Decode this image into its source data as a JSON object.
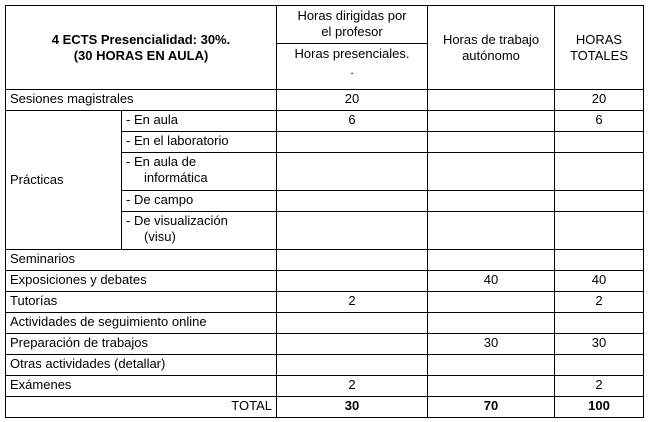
{
  "header": {
    "title_line1": "4 ECTS Presencialidad: 30%.",
    "title_line2": "(30 HORAS EN AULA)",
    "col_profesor_line1": "Horas dirigidas por",
    "col_profesor_line2": "el profesor",
    "col_presenciales_line1": "Horas presenciales.",
    "col_presenciales_line2": ".",
    "col_autonomo_line1": "Horas de trabajo",
    "col_autonomo_line2": "autónomo",
    "col_totales_line1": "HORAS",
    "col_totales_line2": "TOTALES"
  },
  "rows": {
    "sesiones": {
      "label": "Sesiones magistrales",
      "profesor": "20",
      "autonomo": "",
      "total": "20"
    },
    "practicas": {
      "label": "Prácticas",
      "sub": [
        {
          "label": "- En aula",
          "profesor": "6",
          "autonomo": "",
          "total": "6"
        },
        {
          "label": "- En el laboratorio",
          "profesor": "",
          "autonomo": "",
          "total": ""
        },
        {
          "label_line1": "- En aula de",
          "label_line2": "informática",
          "profesor": "",
          "autonomo": "",
          "total": ""
        },
        {
          "label": "- De campo",
          "profesor": "",
          "autonomo": "",
          "total": ""
        },
        {
          "label_line1": "- De visualización",
          "label_line2": "(visu)",
          "profesor": "",
          "autonomo": "",
          "total": ""
        }
      ]
    },
    "seminarios": {
      "label": "Seminarios",
      "profesor": "",
      "autonomo": "",
      "total": ""
    },
    "exposiciones": {
      "label": "Exposiciones y debates",
      "profesor": "",
      "autonomo": "40",
      "total": "40"
    },
    "tutorias": {
      "label": "Tutorías",
      "profesor": "2",
      "autonomo": "",
      "total": "2"
    },
    "seguimiento": {
      "label": "Actividades de seguimiento online",
      "profesor": "",
      "autonomo": "",
      "total": ""
    },
    "preparacion": {
      "label": "Preparación de trabajos",
      "profesor": "",
      "autonomo": "30",
      "total": "30"
    },
    "otras": {
      "label": "Otras actividades (detallar)",
      "profesor": "",
      "autonomo": "",
      "total": ""
    },
    "examenes": {
      "label": "Exámenes",
      "profesor": "2",
      "autonomo": "",
      "total": "2"
    },
    "total": {
      "label": "TOTAL",
      "profesor": "30",
      "autonomo": "70",
      "total": "100"
    }
  }
}
